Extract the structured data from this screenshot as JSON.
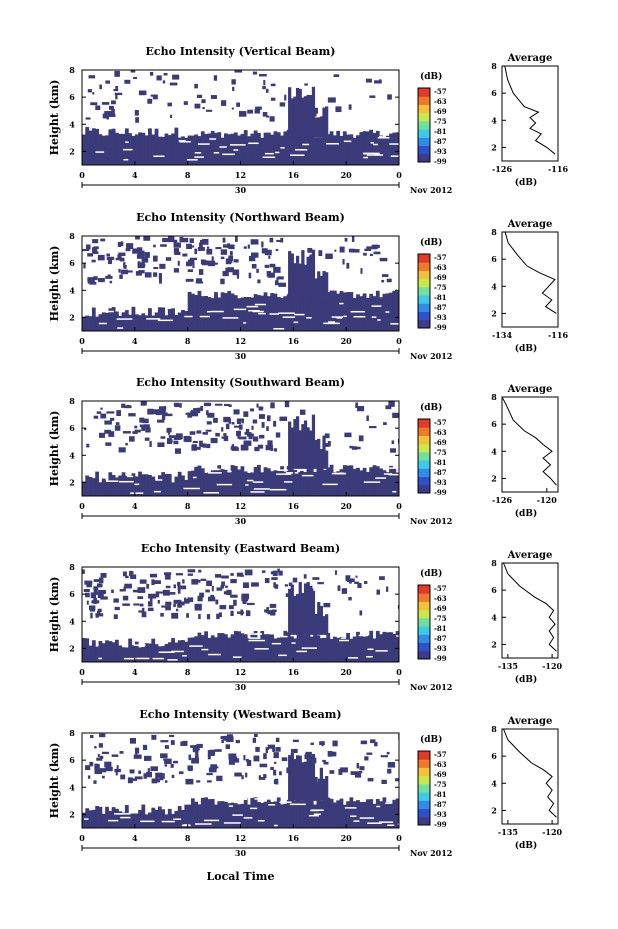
{
  "figure": {
    "time_axis_label": "Local Time",
    "date_label": "Nov 2012",
    "day_label": "30",
    "units_label": "(dB)",
    "average_title": "Average",
    "height_label": "Height (km)",
    "colors": {
      "echo": "#3b3b7a",
      "background": "#ffffff",
      "colorbar": [
        "#3b3b8a",
        "#3050c8",
        "#2f8be6",
        "#3ec9e6",
        "#6fe0a0",
        "#c8e84e",
        "#f3c23a",
        "#f07a2c",
        "#e03a2a"
      ]
    }
  },
  "chart_data": [
    {
      "type": "heatmap",
      "title": "Echo Intensity (Vertical Beam)",
      "xlabel": "",
      "ylabel": "Height (km)",
      "xlim": [
        0,
        24
      ],
      "ylim": [
        1,
        8
      ],
      "xticks": [
        "0",
        "4",
        "8",
        "12",
        "16",
        "20",
        "0"
      ],
      "yticks": [
        "2",
        "4",
        "6",
        "8"
      ],
      "colorbar": {
        "units": "(dB)",
        "labels": [
          "-57",
          "-63",
          "-69",
          "-75",
          "-81",
          "-87",
          "-93",
          "-99"
        ]
      },
      "average": {
        "title": "Average",
        "xlabel": "(dB)",
        "xticks": [
          "-126",
          "-116"
        ],
        "xlim": [
          -126,
          -116
        ],
        "yticks": [
          "2",
          "4",
          "6",
          "8"
        ],
        "profile": [
          [
            -116.5,
            1.5
          ],
          [
            -118,
            2
          ],
          [
            -120,
            2.5
          ],
          [
            -119,
            3
          ],
          [
            -121,
            3.4
          ],
          [
            -120,
            3.8
          ],
          [
            -121,
            4.2
          ],
          [
            -119.5,
            4.6
          ],
          [
            -122,
            5
          ],
          [
            -123,
            5.5
          ],
          [
            -124,
            6
          ],
          [
            -125,
            7
          ],
          [
            -125.5,
            8
          ]
        ]
      }
    },
    {
      "type": "heatmap",
      "title": "Echo Intensity (Northward Beam)",
      "xlabel": "",
      "ylabel": "Height (km)",
      "xlim": [
        0,
        24
      ],
      "ylim": [
        1,
        8
      ],
      "xticks": [
        "0",
        "4",
        "8",
        "12",
        "16",
        "20",
        "0"
      ],
      "yticks": [
        "2",
        "4",
        "6",
        "8"
      ],
      "colorbar": {
        "units": "(dB)",
        "labels": [
          "-57",
          "-63",
          "-69",
          "-75",
          "-81",
          "-87",
          "-93",
          "-99"
        ]
      },
      "average": {
        "title": "Average",
        "xlabel": "(dB)",
        "xticks": [
          "-134",
          "-116"
        ],
        "xlim": [
          -134,
          -116
        ],
        "yticks": [
          "2",
          "4",
          "6",
          "8"
        ],
        "profile": [
          [
            -116.5,
            2
          ],
          [
            -120,
            2.5
          ],
          [
            -118,
            3
          ],
          [
            -121,
            3.5
          ],
          [
            -119,
            4
          ],
          [
            -117,
            4.5
          ],
          [
            -122,
            5
          ],
          [
            -126,
            5.5
          ],
          [
            -129,
            6.3
          ],
          [
            -132,
            7.2
          ],
          [
            -133,
            8
          ]
        ]
      }
    },
    {
      "type": "heatmap",
      "title": "Echo Intensity (Southward Beam)",
      "xlabel": "",
      "ylabel": "Height (km)",
      "xlim": [
        0,
        24
      ],
      "ylim": [
        1,
        8
      ],
      "xticks": [
        "0",
        "4",
        "8",
        "12",
        "16",
        "20",
        "0"
      ],
      "yticks": [
        "2",
        "4",
        "6",
        "8"
      ],
      "colorbar": {
        "units": "(dB)",
        "labels": [
          "-57",
          "-63",
          "-69",
          "-75",
          "-81",
          "-87",
          "-93",
          "-99"
        ]
      },
      "average": {
        "title": "Average",
        "xlabel": "(dB)",
        "xticks": [
          "-126",
          "-120"
        ],
        "xlim": [
          -126,
          -118.5
        ],
        "yticks": [
          "2",
          "4",
          "6",
          "8"
        ],
        "profile": [
          [
            -118.7,
            1.5
          ],
          [
            -119.5,
            2
          ],
          [
            -120.5,
            2.5
          ],
          [
            -119.5,
            3
          ],
          [
            -120.5,
            3.5
          ],
          [
            -119.3,
            4
          ],
          [
            -120.5,
            4.5
          ],
          [
            -121.5,
            5
          ],
          [
            -123,
            5.5
          ],
          [
            -124.5,
            6.3
          ],
          [
            -125.5,
            7.5
          ],
          [
            -126,
            8
          ]
        ]
      }
    },
    {
      "type": "heatmap",
      "title": "Echo Intensity (Eastward Beam)",
      "xlabel": "",
      "ylabel": "Height (km)",
      "xlim": [
        0,
        24
      ],
      "ylim": [
        1,
        8
      ],
      "xticks": [
        "0",
        "4",
        "8",
        "12",
        "16",
        "20",
        "0"
      ],
      "yticks": [
        "2",
        "4",
        "6",
        "8"
      ],
      "colorbar": {
        "units": "(dB)",
        "labels": [
          "-57",
          "-63",
          "-69",
          "-75",
          "-81",
          "-87",
          "-93",
          "-99"
        ]
      },
      "average": {
        "title": "Average",
        "xlabel": "(dB)",
        "xticks": [
          "-135",
          "-120"
        ],
        "xlim": [
          -137,
          -118
        ],
        "yticks": [
          "2",
          "4",
          "6",
          "8"
        ],
        "profile": [
          [
            -118.5,
            1.5
          ],
          [
            -121,
            2
          ],
          [
            -119.5,
            2.5
          ],
          [
            -121,
            3
          ],
          [
            -119,
            3.5
          ],
          [
            -121,
            4
          ],
          [
            -119.5,
            4.5
          ],
          [
            -122,
            5
          ],
          [
            -126,
            5.5
          ],
          [
            -131,
            6.3
          ],
          [
            -135,
            7.2
          ],
          [
            -136.5,
            8
          ]
        ]
      }
    },
    {
      "type": "heatmap",
      "title": "Echo Intensity (Westward Beam)",
      "xlabel": "Local Time",
      "ylabel": "Height (km)",
      "xlim": [
        0,
        24
      ],
      "ylim": [
        1,
        8
      ],
      "xticks": [
        "0",
        "4",
        "8",
        "12",
        "16",
        "20",
        "0"
      ],
      "yticks": [
        "2",
        "4",
        "6",
        "8"
      ],
      "colorbar": {
        "units": "(dB)",
        "labels": [
          "-57",
          "-63",
          "-69",
          "-75",
          "-81",
          "-87",
          "-93",
          "-99"
        ]
      },
      "average": {
        "title": "Average",
        "xlabel": "(dB)",
        "xticks": [
          "-135",
          "-120"
        ],
        "xlim": [
          -137,
          -118
        ],
        "yticks": [
          "2",
          "4",
          "6",
          "8"
        ],
        "profile": [
          [
            -118.5,
            1.5
          ],
          [
            -121,
            2
          ],
          [
            -119.5,
            2.5
          ],
          [
            -121.5,
            3
          ],
          [
            -120,
            3.5
          ],
          [
            -122,
            4
          ],
          [
            -120,
            4.5
          ],
          [
            -123,
            5
          ],
          [
            -127,
            5.5
          ],
          [
            -131,
            6.3
          ],
          [
            -135,
            7.2
          ],
          [
            -136.5,
            8
          ]
        ]
      }
    }
  ]
}
